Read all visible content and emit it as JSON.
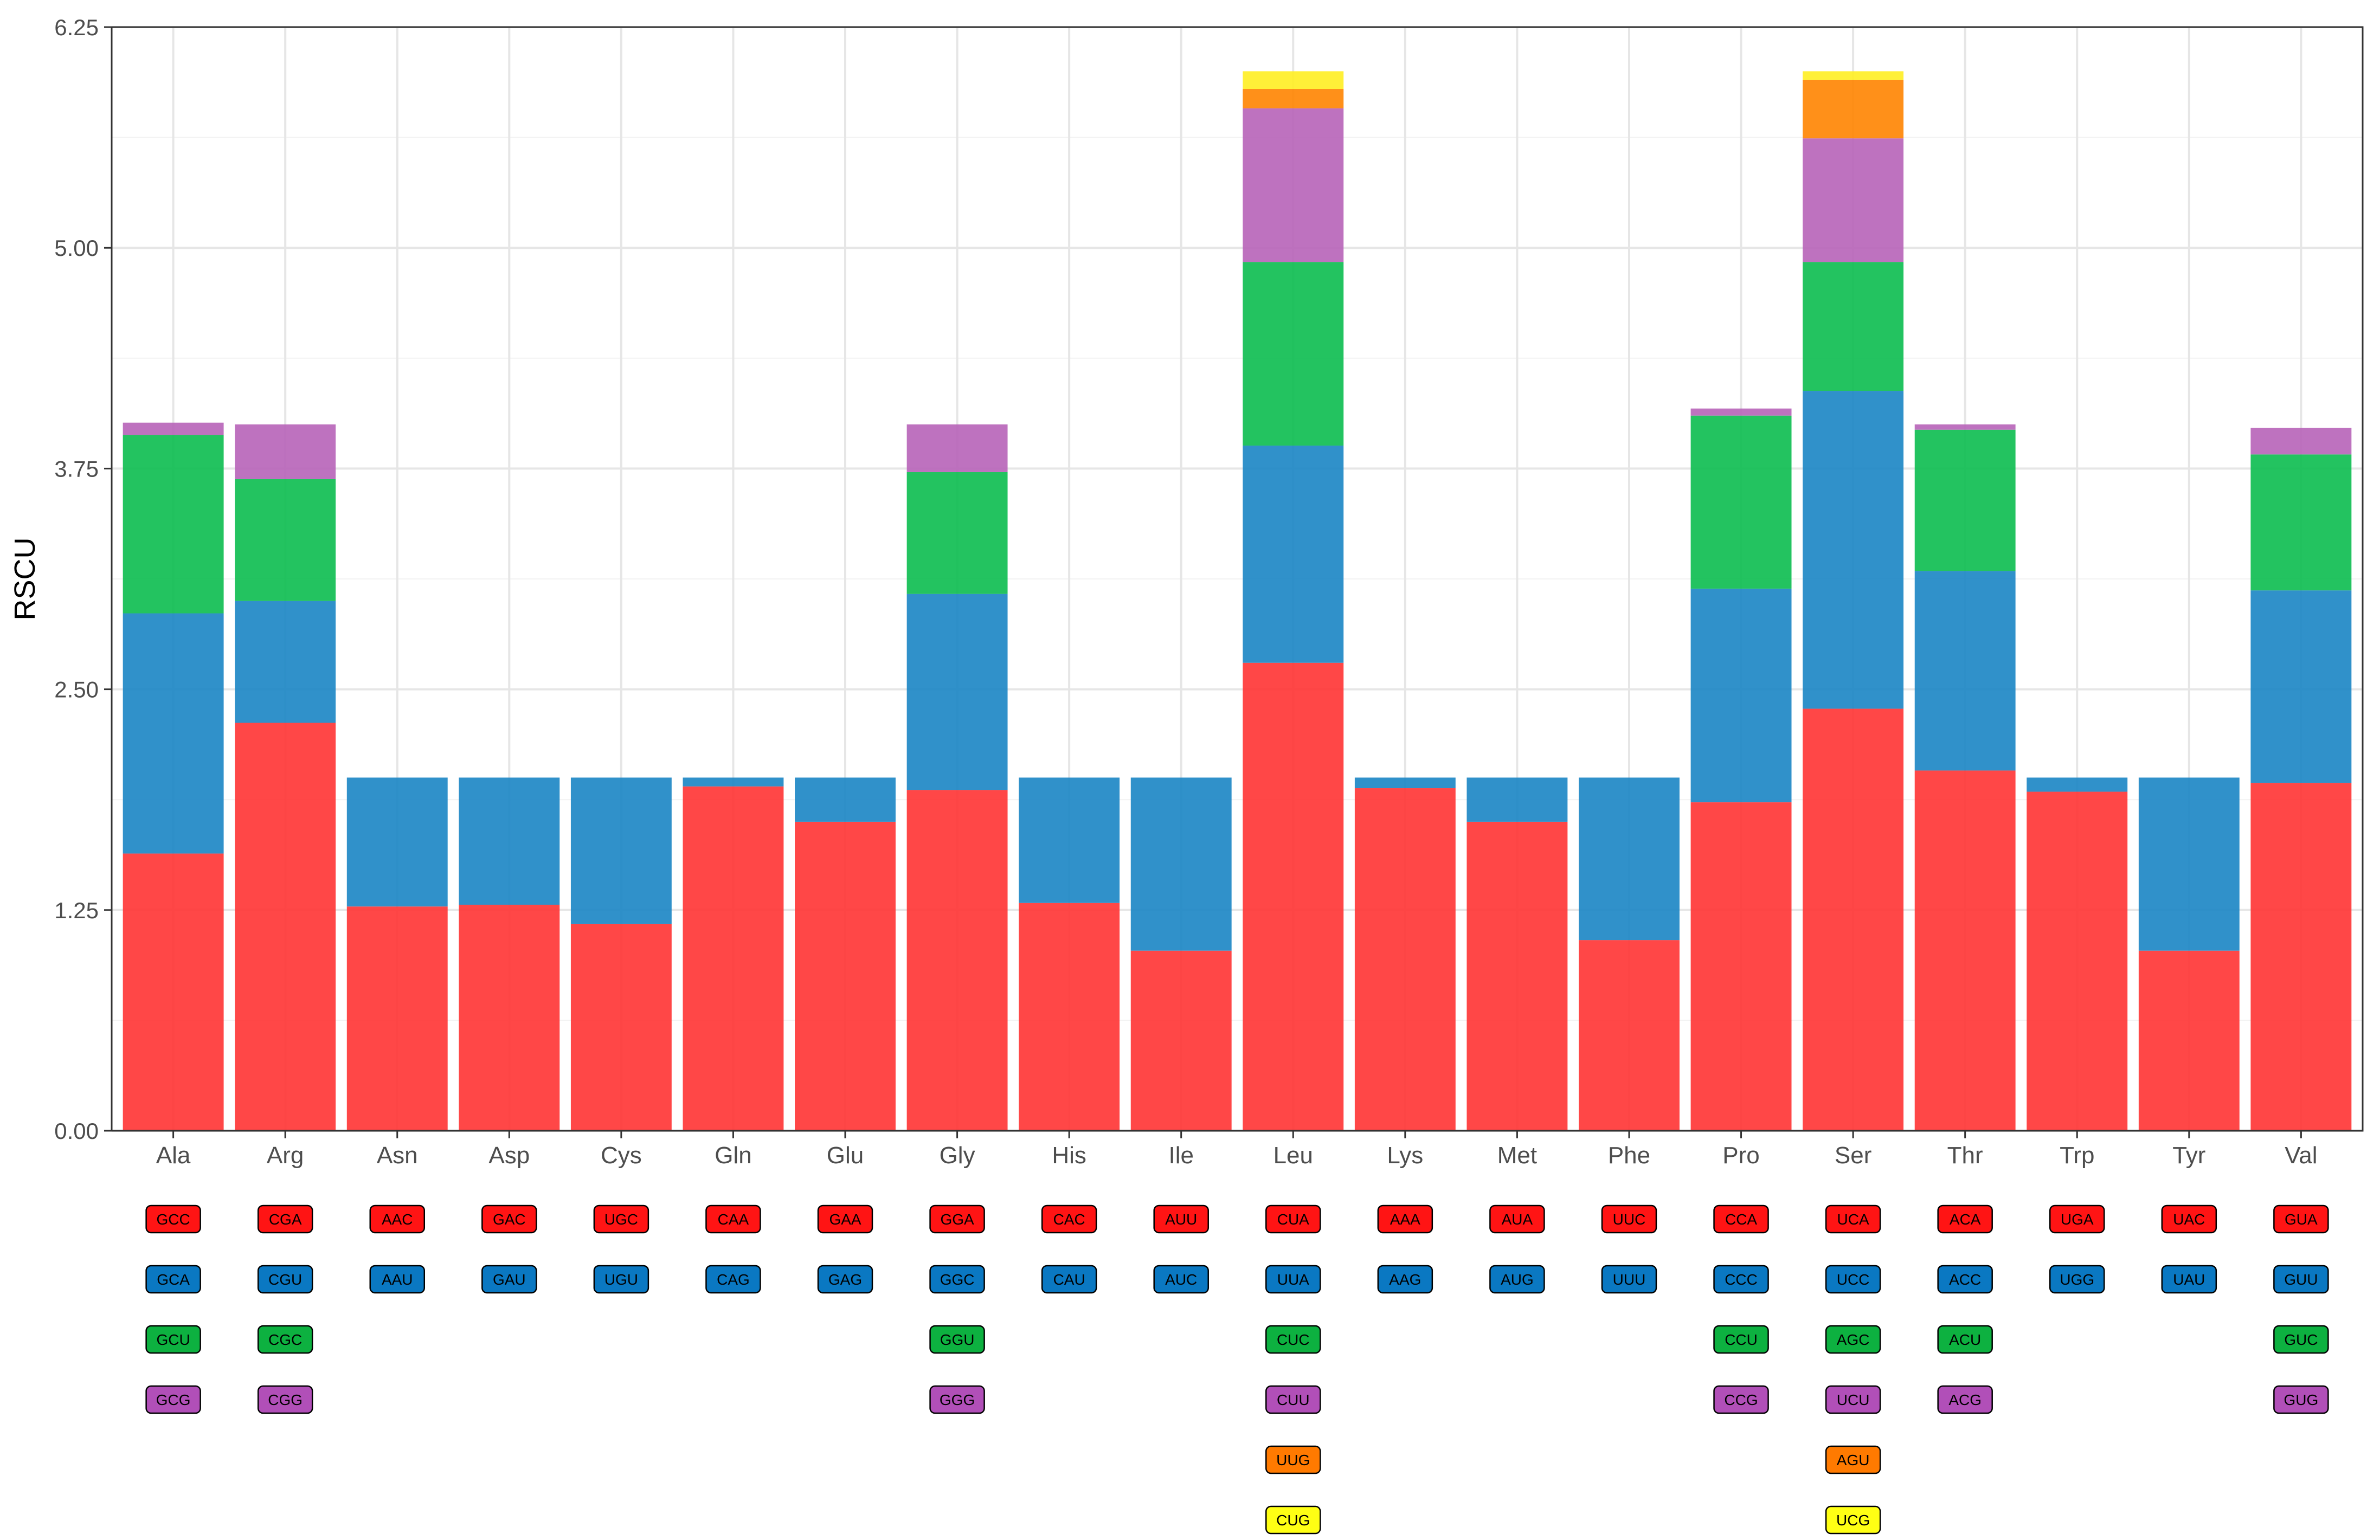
{
  "chart_data": {
    "type": "bar",
    "stacked": true,
    "title": "",
    "xlabel": "",
    "ylabel": "RSCU",
    "ylim": [
      0,
      6.25
    ],
    "yticks": [
      "0.00",
      "1.25",
      "2.50",
      "3.75",
      "5.00",
      "6.25"
    ],
    "grid": true,
    "colors": [
      "#ff3333",
      "#1a85c4",
      "#0bbd4f",
      "#b763b8",
      "#ff8400",
      "#ffee22"
    ],
    "label_colors": [
      "#ff1414",
      "#0a78c2",
      "#0db140",
      "#b14fb8",
      "#ff7a00",
      "#ffff14"
    ],
    "categories": [
      "Ala",
      "Arg",
      "Asn",
      "Asp",
      "Cys",
      "Gln",
      "Glu",
      "Gly",
      "His",
      "Ile",
      "Leu",
      "Lys",
      "Met",
      "Phe",
      "Pro",
      "Ser",
      "Thr",
      "Trp",
      "Tyr",
      "Val"
    ],
    "stacks": [
      [
        {
          "codon": "GCC",
          "value": 1.57
        },
        {
          "codon": "GCA",
          "value": 1.36
        },
        {
          "codon": "GCU",
          "value": 1.01
        },
        {
          "codon": "GCG",
          "value": 0.07
        }
      ],
      [
        {
          "codon": "CGA",
          "value": 2.31
        },
        {
          "codon": "CGU",
          "value": 0.69
        },
        {
          "codon": "CGC",
          "value": 0.69
        },
        {
          "codon": "CGG",
          "value": 0.31
        }
      ],
      [
        {
          "codon": "AAC",
          "value": 1.27
        },
        {
          "codon": "AAU",
          "value": 0.73
        }
      ],
      [
        {
          "codon": "GAC",
          "value": 1.28
        },
        {
          "codon": "GAU",
          "value": 0.72
        }
      ],
      [
        {
          "codon": "UGC",
          "value": 1.17
        },
        {
          "codon": "UGU",
          "value": 0.83
        }
      ],
      [
        {
          "codon": "CAA",
          "value": 1.95
        },
        {
          "codon": "CAG",
          "value": 0.05
        }
      ],
      [
        {
          "codon": "GAA",
          "value": 1.75
        },
        {
          "codon": "GAG",
          "value": 0.25
        }
      ],
      [
        {
          "codon": "GGA",
          "value": 1.93
        },
        {
          "codon": "GGC",
          "value": 1.11
        },
        {
          "codon": "GGU",
          "value": 0.69
        },
        {
          "codon": "GGG",
          "value": 0.27
        }
      ],
      [
        {
          "codon": "CAC",
          "value": 1.29
        },
        {
          "codon": "CAU",
          "value": 0.71
        }
      ],
      [
        {
          "codon": "AUU",
          "value": 1.02
        },
        {
          "codon": "AUC",
          "value": 0.98
        }
      ],
      [
        {
          "codon": "CUA",
          "value": 2.65
        },
        {
          "codon": "UUA",
          "value": 1.23
        },
        {
          "codon": "CUC",
          "value": 1.04
        },
        {
          "codon": "CUU",
          "value": 0.87
        },
        {
          "codon": "UUG",
          "value": 0.11
        },
        {
          "codon": "CUG",
          "value": 0.1
        }
      ],
      [
        {
          "codon": "AAA",
          "value": 1.94
        },
        {
          "codon": "AAG",
          "value": 0.06
        }
      ],
      [
        {
          "codon": "AUA",
          "value": 1.75
        },
        {
          "codon": "AUG",
          "value": 0.25
        }
      ],
      [
        {
          "codon": "UUC",
          "value": 1.08
        },
        {
          "codon": "UUU",
          "value": 0.92
        }
      ],
      [
        {
          "codon": "CCA",
          "value": 1.86
        },
        {
          "codon": "CCC",
          "value": 1.21
        },
        {
          "codon": "CCU",
          "value": 0.98
        },
        {
          "codon": "CCG",
          "value": 0.04
        }
      ],
      [
        {
          "codon": "UCA",
          "value": 2.39
        },
        {
          "codon": "UCC",
          "value": 1.8
        },
        {
          "codon": "AGC",
          "value": 0.73
        },
        {
          "codon": "UCU",
          "value": 0.7
        },
        {
          "codon": "AGU",
          "value": 0.33
        },
        {
          "codon": "UCG",
          "value": 0.05
        }
      ],
      [
        {
          "codon": "ACA",
          "value": 2.04
        },
        {
          "codon": "ACC",
          "value": 1.13
        },
        {
          "codon": "ACU",
          "value": 0.8
        },
        {
          "codon": "ACG",
          "value": 0.03
        }
      ],
      [
        {
          "codon": "UGA",
          "value": 1.92
        },
        {
          "codon": "UGG",
          "value": 0.08
        }
      ],
      [
        {
          "codon": "UAC",
          "value": 1.02
        },
        {
          "codon": "UAU",
          "value": 0.98
        }
      ],
      [
        {
          "codon": "GUA",
          "value": 1.97
        },
        {
          "codon": "GUU",
          "value": 1.09
        },
        {
          "codon": "GUC",
          "value": 0.77
        },
        {
          "codon": "GUG",
          "value": 0.15
        }
      ]
    ]
  }
}
